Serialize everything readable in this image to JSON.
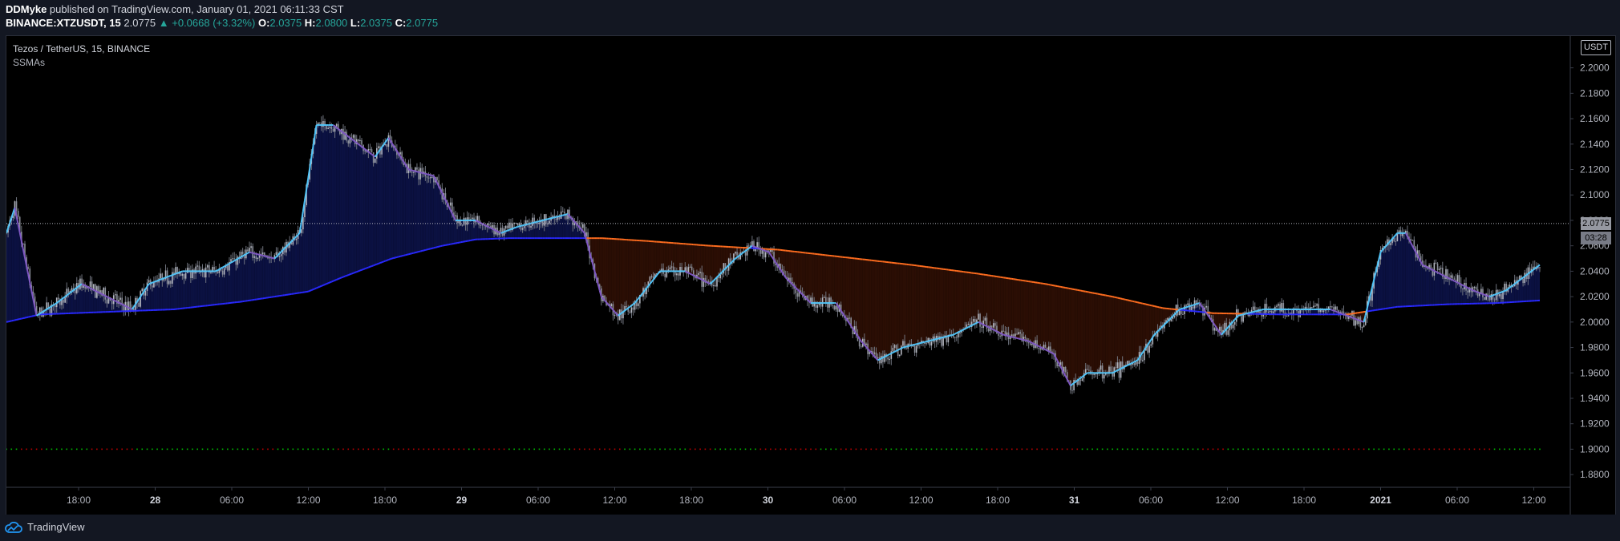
{
  "header": {
    "publisher": "DDMyke",
    "published_text": "published on TradingView.com, January 01, 2021 06:11:33 CST",
    "symbol": "BINANCE:XTZUSDT, 15",
    "last": "2.0775",
    "change": "▲ +0.0668 (+3.32%)",
    "o_label": "O:",
    "o_value": "2.0375",
    "h_label": "H:",
    "h_value": "2.0800",
    "l_label": "L:",
    "l_value": "2.0375",
    "c_label": "C:",
    "c_value": "2.0775"
  },
  "legend": {
    "series_title": "Tezos / TetherUS, 15, BINANCE",
    "indicator": "SSMAs"
  },
  "price_axis": {
    "currency": "USDT",
    "last_price_tag": "2.0775",
    "countdown": "03:28"
  },
  "footer": {
    "brand": "TradingView"
  },
  "colors": {
    "candle": "#b2b5be",
    "fast_ma": "#4fc3f7",
    "fast_ma_down": "#7e57c2",
    "slow_ma_up": "#2929ff",
    "slow_ma_down": "#ff6d1f",
    "bull_fill": "#0b1142",
    "bear_fill": "#2b0e04",
    "dots_green": "#00c800",
    "dots_red": "#c80000"
  },
  "chart_data": {
    "type": "candlestick",
    "symbol": "Tezos / TetherUS, 15, BINANCE",
    "ylim": [
      1.87,
      2.225
    ],
    "y_ticks": [
      "2.2000",
      "2.1800",
      "2.1600",
      "2.1400",
      "2.1200",
      "2.1000",
      "2.0800",
      "2.0600",
      "2.0400",
      "2.0200",
      "2.0000",
      "1.9800",
      "1.9600",
      "1.9400",
      "1.9200",
      "1.9000",
      "1.8800"
    ],
    "x_ticks": [
      "18:00",
      "28",
      "06:00",
      "12:00",
      "18:00",
      "29",
      "06:00",
      "12:00",
      "18:00",
      "30",
      "06:00",
      "12:00",
      "18:00",
      "31",
      "06:00",
      "12:00",
      "18:00",
      "2021",
      "06:00",
      "12:00"
    ],
    "dots_level": 1.9,
    "last_price": 2.0775,
    "fast_ma_keypoints": [
      [
        0,
        2.07
      ],
      [
        5,
        2.09
      ],
      [
        18,
        2.005
      ],
      [
        30,
        2.015
      ],
      [
        45,
        2.03
      ],
      [
        60,
        2.02
      ],
      [
        75,
        2.01
      ],
      [
        85,
        2.03
      ],
      [
        105,
        2.04
      ],
      [
        125,
        2.04
      ],
      [
        145,
        2.055
      ],
      [
        160,
        2.05
      ],
      [
        175,
        2.07
      ],
      [
        185,
        2.155
      ],
      [
        195,
        2.155
      ],
      [
        210,
        2.14
      ],
      [
        220,
        2.13
      ],
      [
        228,
        2.145
      ],
      [
        240,
        2.12
      ],
      [
        255,
        2.115
      ],
      [
        268,
        2.08
      ],
      [
        280,
        2.08
      ],
      [
        295,
        2.07
      ],
      [
        305,
        2.075
      ],
      [
        320,
        2.08
      ],
      [
        335,
        2.085
      ],
      [
        345,
        2.07
      ],
      [
        355,
        2.02
      ],
      [
        365,
        2.005
      ],
      [
        375,
        2.015
      ],
      [
        390,
        2.04
      ],
      [
        405,
        2.04
      ],
      [
        420,
        2.03
      ],
      [
        435,
        2.05
      ],
      [
        445,
        2.06
      ],
      [
        455,
        2.055
      ],
      [
        465,
        2.035
      ],
      [
        480,
        2.015
      ],
      [
        495,
        2.015
      ],
      [
        510,
        1.985
      ],
      [
        520,
        1.97
      ],
      [
        535,
        1.98
      ],
      [
        550,
        1.985
      ],
      [
        565,
        1.99
      ],
      [
        580,
        2
      ],
      [
        595,
        1.99
      ],
      [
        610,
        1.985
      ],
      [
        625,
        1.975
      ],
      [
        635,
        1.95
      ],
      [
        645,
        1.96
      ],
      [
        660,
        1.96
      ],
      [
        675,
        1.97
      ],
      [
        685,
        1.99
      ],
      [
        700,
        2.01
      ],
      [
        712,
        2.015
      ],
      [
        725,
        1.99
      ],
      [
        735,
        2.005
      ],
      [
        750,
        2.01
      ],
      [
        770,
        2.01
      ],
      [
        790,
        2.01
      ],
      [
        800,
        2.005
      ],
      [
        810,
        2.0
      ],
      [
        820,
        2.055
      ],
      [
        830,
        2.07
      ],
      [
        835,
        2.07
      ],
      [
        845,
        2.045
      ],
      [
        860,
        2.035
      ],
      [
        875,
        2.025
      ],
      [
        885,
        2.02
      ],
      [
        895,
        2.025
      ],
      [
        905,
        2.035
      ],
      [
        915,
        2.045
      ]
    ],
    "slow_ma_keypoints": [
      [
        0,
        2.0
      ],
      [
        20,
        2.006
      ],
      [
        60,
        2.008
      ],
      [
        100,
        2.01
      ],
      [
        140,
        2.016
      ],
      [
        180,
        2.024
      ],
      [
        200,
        2.035
      ],
      [
        230,
        2.05
      ],
      [
        260,
        2.06
      ],
      [
        280,
        2.065
      ],
      [
        300,
        2.066
      ],
      [
        330,
        2.066
      ],
      [
        355,
        2.066
      ],
      [
        380,
        2.064
      ],
      [
        420,
        2.06
      ],
      [
        460,
        2.057
      ],
      [
        500,
        2.051
      ],
      [
        540,
        2.045
      ],
      [
        580,
        2.038
      ],
      [
        620,
        2.03
      ],
      [
        660,
        2.02
      ],
      [
        690,
        2.011
      ],
      [
        720,
        2.007
      ],
      [
        760,
        2.006
      ],
      [
        800,
        2.006
      ],
      [
        830,
        2.012
      ],
      [
        860,
        2.014
      ],
      [
        890,
        2.015
      ],
      [
        915,
        2.017
      ]
    ]
  }
}
